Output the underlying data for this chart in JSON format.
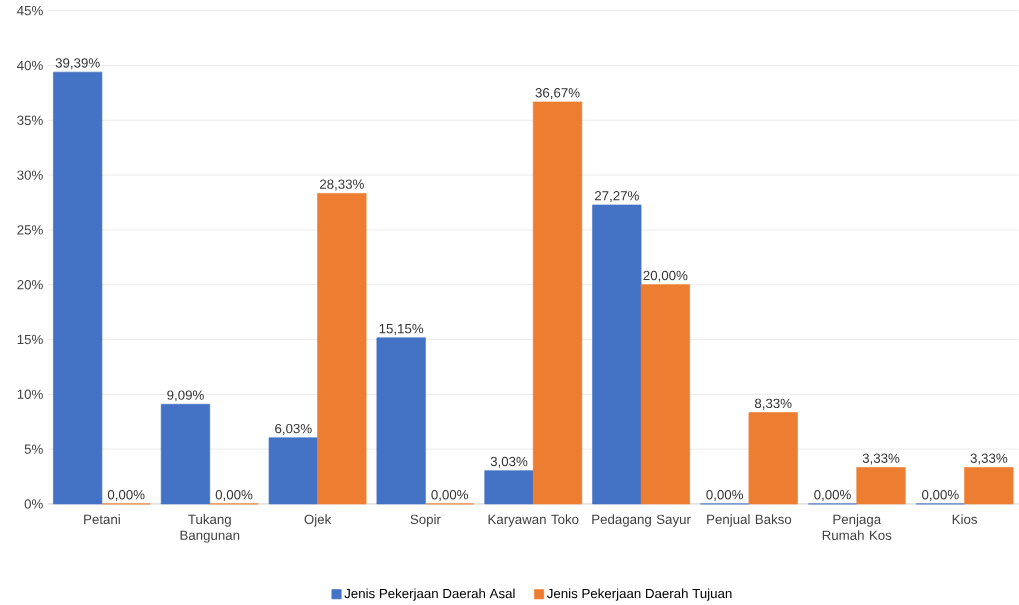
{
  "chart_data": {
    "type": "bar",
    "categories": [
      "Petani",
      "Tukang Bangunan",
      "Ojek",
      "Sopir",
      "Karyawan Toko",
      "Pedagang Sayur",
      "Penjual Bakso",
      "Penjaga Rumah Kos",
      "Kios"
    ],
    "series": [
      {
        "name": "Jenis Pekerjaan Daerah Asal",
        "color": "#4472c4",
        "values": [
          39.39,
          9.09,
          6.03,
          15.15,
          3.03,
          27.27,
          0,
          0,
          0
        ],
        "value_labels": [
          "39,39%",
          "9,09%",
          "6,03%",
          "15,15%",
          "3,03%",
          "27,27%",
          "0,00%",
          "0,00%",
          "0,00%"
        ]
      },
      {
        "name": "Jenis Pekerjaan Daerah Tujuan",
        "color": "#ed7d31",
        "values": [
          0,
          0,
          28.33,
          0,
          36.67,
          20.0,
          8.33,
          3.33,
          3.33
        ],
        "value_labels": [
          "0,00%",
          "0,00%",
          "28,33%",
          "0,00%",
          "36,67%",
          "20,00%",
          "8,33%",
          "3,33%",
          "3,33%"
        ]
      }
    ],
    "ylim": [
      0,
      45
    ],
    "yticks": [
      {
        "value": 0,
        "label": "0%"
      },
      {
        "value": 5,
        "label": "5%"
      },
      {
        "value": 10,
        "label": "10%"
      },
      {
        "value": 15,
        "label": "15%"
      },
      {
        "value": 20,
        "label": "20%"
      },
      {
        "value": 25,
        "label": "25%"
      },
      {
        "value": 30,
        "label": "30%"
      },
      {
        "value": 35,
        "label": "35%"
      },
      {
        "value": 40,
        "label": "40%"
      },
      {
        "value": 45,
        "label": "45%"
      }
    ],
    "grid": "y",
    "legend": "bottom"
  }
}
